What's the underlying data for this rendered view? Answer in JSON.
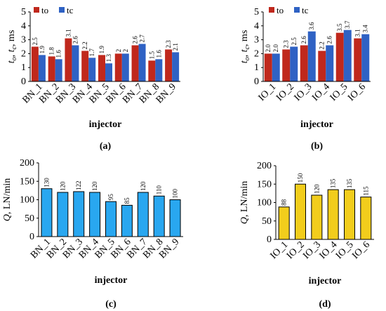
{
  "colors": {
    "to": "#C0281C",
    "tc": "#2F62C4",
    "q_bn": "#29A7F0",
    "q_io": "#F2CD1C",
    "bar_stroke": "#000000"
  },
  "chart_data": [
    {
      "id": "a",
      "type": "bar",
      "panel_label": "(a)",
      "ylabel_parts": [
        "t",
        "o",
        ", ",
        "t",
        "c",
        ", ms"
      ],
      "xlabel": "injector",
      "ylim": [
        0,
        5
      ],
      "yticks": [
        0,
        1,
        2,
        3,
        4,
        5
      ],
      "grid": false,
      "legend_position": "top-left",
      "categories": [
        "BN_1",
        "BN_2",
        "BN_3",
        "BN_4",
        "BN_5",
        "BN_6",
        "BN_7",
        "BN_8",
        "BN_9"
      ],
      "series": [
        {
          "name": "to",
          "values": [
            2.5,
            1.8,
            3.1,
            2.2,
            1.9,
            2.0,
            2.6,
            1.5,
            2.3
          ]
        },
        {
          "name": "tc",
          "values": [
            1.9,
            1.6,
            2.6,
            1.7,
            1.3,
            2.0,
            2.7,
            1.6,
            2.1
          ]
        }
      ],
      "value_labels": [
        [
          "2.5",
          "1.8",
          "3.1",
          "2.2",
          "1.9",
          "2",
          "2.6",
          "1.5",
          "2.3"
        ],
        [
          "1.9",
          "1.6",
          "2.6",
          "1.7",
          "1.3",
          "2",
          "2.7",
          "1.6",
          "2.1"
        ]
      ]
    },
    {
      "id": "b",
      "type": "bar",
      "panel_label": "(b)",
      "ylabel_parts": [
        "t",
        "o",
        ", ",
        "t",
        "c",
        ", ms"
      ],
      "xlabel": "injector",
      "ylim": [
        0,
        5
      ],
      "yticks": [
        0,
        1,
        2,
        3,
        4,
        5
      ],
      "grid": false,
      "legend_position": "top-left",
      "categories": [
        "IO_1",
        "IO_2",
        "IO_3",
        "IO_4",
        "IO_5",
        "IO_6"
      ],
      "series": [
        {
          "name": "to",
          "values": [
            2.0,
            2.3,
            2.6,
            2.2,
            3.5,
            3.1
          ]
        },
        {
          "name": "tc",
          "values": [
            2.0,
            2.5,
            3.6,
            2.6,
            3.7,
            3.4
          ]
        }
      ],
      "value_labels": [
        [
          "2.0",
          "2.3",
          "2.6",
          "2.2",
          "3.5",
          "3.1"
        ],
        [
          "2.0",
          "2.5",
          "3.6",
          "2.6",
          "3.7",
          "3.4"
        ]
      ]
    },
    {
      "id": "c",
      "type": "bar",
      "panel_label": "(c)",
      "ylabel_parts": [
        "Q",
        "",
        ", L",
        "N",
        "",
        "/min"
      ],
      "xlabel": "injector",
      "ylim": [
        0,
        200
      ],
      "yticks": [
        0,
        50,
        100,
        150,
        200
      ],
      "grid": false,
      "categories": [
        "BN_1",
        "BN_2",
        "BN_3",
        "BN_4",
        "BN_5",
        "BN_6",
        "BN_7",
        "BN_8",
        "BN_9"
      ],
      "series": [
        {
          "values": [
            130,
            120,
            122,
            120,
            95,
            85,
            120,
            110,
            100
          ]
        }
      ],
      "value_labels": [
        [
          "130",
          "120",
          "122",
          "120",
          "95",
          "85",
          "120",
          "110",
          "100"
        ]
      ]
    },
    {
      "id": "d",
      "type": "bar",
      "panel_label": "(d)",
      "ylabel_parts": [
        "Q",
        "",
        ", L",
        "N",
        "",
        "/min"
      ],
      "xlabel": "injector",
      "ylim": [
        0,
        200
      ],
      "yticks": [
        0,
        50,
        100,
        150,
        200
      ],
      "grid": false,
      "categories": [
        "IO_1",
        "IO_2",
        "IO_3",
        "IO_4",
        "IO_5",
        "IO_6"
      ],
      "series": [
        {
          "values": [
            88,
            150,
            120,
            135,
            135,
            115
          ]
        }
      ],
      "value_labels": [
        [
          "88",
          "150",
          "120",
          "135",
          "135",
          "115"
        ]
      ]
    }
  ]
}
